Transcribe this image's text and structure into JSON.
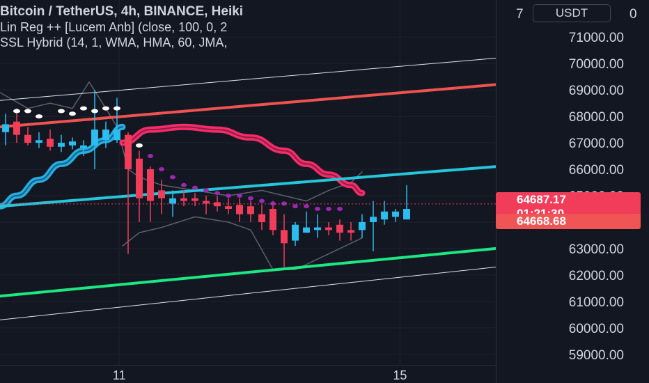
{
  "legend": {
    "line1": "Bitcoin / TetherUS, 4h, BINANCE, Heiki",
    "line2": "Lin Reg ++ [Lucem Anb] (close, 100, 0, 2",
    "line3": "SSL Hybrid (14, 1, WMA, HMA, 60, JMA,"
  },
  "currency_button": "USDT",
  "price_tags": {
    "last_price": "64687.17",
    "countdown": "01:21:30",
    "second_price": "64668.68"
  },
  "colors": {
    "background": "#131722",
    "bull": "#2bbcf0",
    "bear": "#f23d5a",
    "regression_upper": "#ef5350",
    "regression_lower": "#1de782",
    "ssl_baseline": "#26c6da",
    "ssl_band": "#ff2d6f",
    "channel": "#e0e3eb",
    "dots_white": "#ffffff",
    "dots_purple": "#9c27b0"
  },
  "chart_data": {
    "type": "candlestick",
    "symbol": "Bitcoin / TetherUS",
    "timeframe": "4h",
    "exchange": "BINANCE",
    "y_axis": {
      "ticks": [
        "59000.00",
        "60000.00",
        "61000.00",
        "62000.00",
        "63000.00",
        "64000.00",
        "65000.00",
        "66000.00",
        "67000.00",
        "68000.00",
        "69000.00",
        "70000.00",
        "71000.00"
      ],
      "top_partial_label": "7",
      "top_right_label": "0",
      "range": [
        58600,
        72400
      ]
    },
    "x_axis": {
      "ticks": [
        {
          "label": "11",
          "bar": 10.2
        },
        {
          "label": "15",
          "bar": 35.4
        }
      ],
      "bar_range": [
        -0.5,
        44.0
      ]
    },
    "candles": [
      {
        "o": 67400,
        "h": 68100,
        "l": 66900,
        "c": 67700
      },
      {
        "o": 67800,
        "h": 68300,
        "l": 67000,
        "c": 67300
      },
      {
        "o": 67300,
        "h": 67600,
        "l": 66900,
        "c": 67000
      },
      {
        "o": 67000,
        "h": 67400,
        "l": 66800,
        "c": 67100
      },
      {
        "o": 67150,
        "h": 67500,
        "l": 66700,
        "c": 66850
      },
      {
        "o": 66850,
        "h": 67300,
        "l": 66650,
        "c": 67000
      },
      {
        "o": 66900,
        "h": 67200,
        "l": 66750,
        "c": 67050
      },
      {
        "o": 66800,
        "h": 67100,
        "l": 66500,
        "c": 66900
      },
      {
        "o": 66900,
        "h": 69000,
        "l": 66000,
        "c": 67500
      },
      {
        "o": 67100,
        "h": 67800,
        "l": 66800,
        "c": 67500
      },
      {
        "o": 67100,
        "h": 68700,
        "l": 67000,
        "c": 67500
      },
      {
        "o": 67300,
        "h": 67400,
        "l": 62800,
        "c": 66000
      },
      {
        "o": 66400,
        "h": 66700,
        "l": 64000,
        "c": 64900
      },
      {
        "o": 66000,
        "h": 66100,
        "l": 64000,
        "c": 64800
      },
      {
        "o": 65200,
        "h": 65600,
        "l": 64300,
        "c": 64900
      },
      {
        "o": 64700,
        "h": 65200,
        "l": 64200,
        "c": 64900
      },
      {
        "o": 64900,
        "h": 65200,
        "l": 64600,
        "c": 64800
      },
      {
        "o": 64900,
        "h": 65100,
        "l": 64600,
        "c": 64800
      },
      {
        "o": 64800,
        "h": 65000,
        "l": 64300,
        "c": 64700
      },
      {
        "o": 64750,
        "h": 65000,
        "l": 64400,
        "c": 64600
      },
      {
        "o": 64600,
        "h": 64900,
        "l": 64300,
        "c": 64500
      },
      {
        "o": 64650,
        "h": 64900,
        "l": 64000,
        "c": 64300
      },
      {
        "o": 64600,
        "h": 64800,
        "l": 64000,
        "c": 64300
      },
      {
        "o": 64300,
        "h": 64650,
        "l": 63700,
        "c": 64000
      },
      {
        "o": 64500,
        "h": 64800,
        "l": 63500,
        "c": 63700
      },
      {
        "o": 63700,
        "h": 64300,
        "l": 62300,
        "c": 63200
      },
      {
        "o": 63300,
        "h": 64000,
        "l": 63100,
        "c": 63900
      },
      {
        "o": 63600,
        "h": 64400,
        "l": 63600,
        "c": 63800
      },
      {
        "o": 63700,
        "h": 64300,
        "l": 63400,
        "c": 63800
      },
      {
        "o": 63800,
        "h": 64000,
        "l": 63500,
        "c": 63700
      },
      {
        "o": 63900,
        "h": 64100,
        "l": 63300,
        "c": 63600
      },
      {
        "o": 63700,
        "h": 64000,
        "l": 63300,
        "c": 63600
      },
      {
        "o": 63700,
        "h": 64300,
        "l": 63400,
        "c": 64000
      },
      {
        "o": 64000,
        "h": 64800,
        "l": 62900,
        "c": 64200
      },
      {
        "o": 64100,
        "h": 64800,
        "l": 63900,
        "c": 64400
      },
      {
        "o": 64200,
        "h": 64500,
        "l": 64000,
        "c": 64400
      },
      {
        "o": 64100,
        "h": 65400,
        "l": 64200,
        "c": 64500
      }
    ],
    "indicators": {
      "regression_upper": {
        "x": [
          -0.5,
          44.0
        ],
        "y": [
          67600,
          69200
        ]
      },
      "regression_lower": {
        "x": [
          -0.5,
          44.0
        ],
        "y": [
          61200,
          63000
        ]
      },
      "channel_upper": {
        "x": [
          -0.5,
          44.0
        ],
        "y": [
          68600,
          70200
        ]
      },
      "channel_lower": {
        "x": [
          -0.5,
          44.0
        ],
        "y": [
          60300,
          62300
        ]
      },
      "ssl_baseline": {
        "x": [
          -0.5,
          44.0
        ],
        "y": [
          64600,
          66100
        ]
      },
      "ssl_band": {
        "x": [
          10.5,
          13,
          16,
          19,
          22,
          25,
          27,
          29,
          31,
          32
        ],
        "y": [
          67000,
          67500,
          67600,
          67500,
          67200,
          66700,
          66200,
          65800,
          65400,
          65100
        ]
      },
      "bull_curve": {
        "x": [
          -0.5,
          1,
          3,
          5,
          7,
          9,
          10.5
        ],
        "y": [
          64600,
          65000,
          65600,
          66200,
          66700,
          67100,
          67600
        ]
      },
      "envelope_upper": {
        "x": [
          -0.5,
          2,
          4,
          6,
          7.5,
          9,
          10,
          11,
          12,
          14,
          17,
          20,
          23,
          25,
          27,
          29,
          31,
          32
        ],
        "y": [
          68900,
          68300,
          68500,
          68300,
          69300,
          68300,
          67600,
          66000,
          65700,
          65400,
          65200,
          65000,
          65200,
          65000,
          64800,
          65200,
          65500,
          65900
        ]
      },
      "envelope_lower": {
        "x": [
          10.5,
          12,
          14,
          17,
          20,
          22,
          24,
          26,
          28,
          30,
          32
        ],
        "y": [
          63100,
          63600,
          63800,
          64200,
          64000,
          63700,
          62200,
          62200,
          62600,
          63000,
          63400
        ]
      },
      "white_dots": {
        "x": [
          1,
          2,
          3,
          5,
          6,
          7,
          8,
          9,
          10,
          12
        ],
        "y": [
          68200,
          68200,
          68000,
          68200,
          68100,
          68300,
          68200,
          68300,
          68300,
          66900
        ]
      },
      "purple_dots": {
        "x": [
          13,
          14,
          15,
          16,
          17,
          18,
          19,
          20,
          21,
          22,
          23,
          24,
          25,
          26,
          27,
          28,
          29,
          30
        ],
        "y": [
          66500,
          66000,
          65700,
          65400,
          65300,
          65200,
          65100,
          65000,
          65000,
          64900,
          64800,
          64700,
          64700,
          64600,
          64600,
          64500,
          64500,
          64500
        ]
      }
    },
    "last_price": 64687.17
  }
}
